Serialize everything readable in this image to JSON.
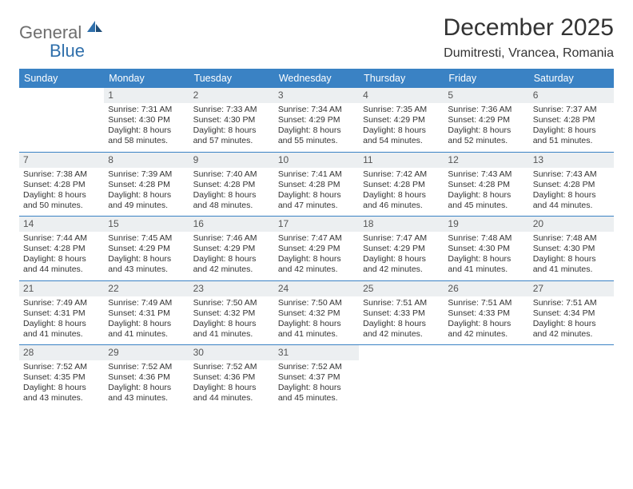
{
  "logo": {
    "word1": "General",
    "word2": "Blue"
  },
  "title": "December 2025",
  "location": "Dumitresti, Vrancea, Romania",
  "colors": {
    "header_bg": "#3a82c4",
    "header_text": "#ffffff",
    "daynum_bg": "#eceff1",
    "rule": "#3a82c4",
    "body_text": "#333333",
    "logo_gray": "#6e6e6e",
    "logo_blue": "#2f6fab",
    "page_bg": "#ffffff"
  },
  "typography": {
    "title_fontsize": 30,
    "location_fontsize": 16,
    "weekday_fontsize": 12.5,
    "daynum_fontsize": 12,
    "body_fontsize": 10.5,
    "logo_fontsize": 22
  },
  "weekdays": [
    "Sunday",
    "Monday",
    "Tuesday",
    "Wednesday",
    "Thursday",
    "Friday",
    "Saturday"
  ],
  "weeks": [
    [
      {
        "n": "",
        "sr": "",
        "ss": "",
        "dl": ""
      },
      {
        "n": "1",
        "sr": "Sunrise: 7:31 AM",
        "ss": "Sunset: 4:30 PM",
        "dl": "Daylight: 8 hours and 58 minutes."
      },
      {
        "n": "2",
        "sr": "Sunrise: 7:33 AM",
        "ss": "Sunset: 4:30 PM",
        "dl": "Daylight: 8 hours and 57 minutes."
      },
      {
        "n": "3",
        "sr": "Sunrise: 7:34 AM",
        "ss": "Sunset: 4:29 PM",
        "dl": "Daylight: 8 hours and 55 minutes."
      },
      {
        "n": "4",
        "sr": "Sunrise: 7:35 AM",
        "ss": "Sunset: 4:29 PM",
        "dl": "Daylight: 8 hours and 54 minutes."
      },
      {
        "n": "5",
        "sr": "Sunrise: 7:36 AM",
        "ss": "Sunset: 4:29 PM",
        "dl": "Daylight: 8 hours and 52 minutes."
      },
      {
        "n": "6",
        "sr": "Sunrise: 7:37 AM",
        "ss": "Sunset: 4:28 PM",
        "dl": "Daylight: 8 hours and 51 minutes."
      }
    ],
    [
      {
        "n": "7",
        "sr": "Sunrise: 7:38 AM",
        "ss": "Sunset: 4:28 PM",
        "dl": "Daylight: 8 hours and 50 minutes."
      },
      {
        "n": "8",
        "sr": "Sunrise: 7:39 AM",
        "ss": "Sunset: 4:28 PM",
        "dl": "Daylight: 8 hours and 49 minutes."
      },
      {
        "n": "9",
        "sr": "Sunrise: 7:40 AM",
        "ss": "Sunset: 4:28 PM",
        "dl": "Daylight: 8 hours and 48 minutes."
      },
      {
        "n": "10",
        "sr": "Sunrise: 7:41 AM",
        "ss": "Sunset: 4:28 PM",
        "dl": "Daylight: 8 hours and 47 minutes."
      },
      {
        "n": "11",
        "sr": "Sunrise: 7:42 AM",
        "ss": "Sunset: 4:28 PM",
        "dl": "Daylight: 8 hours and 46 minutes."
      },
      {
        "n": "12",
        "sr": "Sunrise: 7:43 AM",
        "ss": "Sunset: 4:28 PM",
        "dl": "Daylight: 8 hours and 45 minutes."
      },
      {
        "n": "13",
        "sr": "Sunrise: 7:43 AM",
        "ss": "Sunset: 4:28 PM",
        "dl": "Daylight: 8 hours and 44 minutes."
      }
    ],
    [
      {
        "n": "14",
        "sr": "Sunrise: 7:44 AM",
        "ss": "Sunset: 4:28 PM",
        "dl": "Daylight: 8 hours and 44 minutes."
      },
      {
        "n": "15",
        "sr": "Sunrise: 7:45 AM",
        "ss": "Sunset: 4:29 PM",
        "dl": "Daylight: 8 hours and 43 minutes."
      },
      {
        "n": "16",
        "sr": "Sunrise: 7:46 AM",
        "ss": "Sunset: 4:29 PM",
        "dl": "Daylight: 8 hours and 42 minutes."
      },
      {
        "n": "17",
        "sr": "Sunrise: 7:47 AM",
        "ss": "Sunset: 4:29 PM",
        "dl": "Daylight: 8 hours and 42 minutes."
      },
      {
        "n": "18",
        "sr": "Sunrise: 7:47 AM",
        "ss": "Sunset: 4:29 PM",
        "dl": "Daylight: 8 hours and 42 minutes."
      },
      {
        "n": "19",
        "sr": "Sunrise: 7:48 AM",
        "ss": "Sunset: 4:30 PM",
        "dl": "Daylight: 8 hours and 41 minutes."
      },
      {
        "n": "20",
        "sr": "Sunrise: 7:48 AM",
        "ss": "Sunset: 4:30 PM",
        "dl": "Daylight: 8 hours and 41 minutes."
      }
    ],
    [
      {
        "n": "21",
        "sr": "Sunrise: 7:49 AM",
        "ss": "Sunset: 4:31 PM",
        "dl": "Daylight: 8 hours and 41 minutes."
      },
      {
        "n": "22",
        "sr": "Sunrise: 7:49 AM",
        "ss": "Sunset: 4:31 PM",
        "dl": "Daylight: 8 hours and 41 minutes."
      },
      {
        "n": "23",
        "sr": "Sunrise: 7:50 AM",
        "ss": "Sunset: 4:32 PM",
        "dl": "Daylight: 8 hours and 41 minutes."
      },
      {
        "n": "24",
        "sr": "Sunrise: 7:50 AM",
        "ss": "Sunset: 4:32 PM",
        "dl": "Daylight: 8 hours and 41 minutes."
      },
      {
        "n": "25",
        "sr": "Sunrise: 7:51 AM",
        "ss": "Sunset: 4:33 PM",
        "dl": "Daylight: 8 hours and 42 minutes."
      },
      {
        "n": "26",
        "sr": "Sunrise: 7:51 AM",
        "ss": "Sunset: 4:33 PM",
        "dl": "Daylight: 8 hours and 42 minutes."
      },
      {
        "n": "27",
        "sr": "Sunrise: 7:51 AM",
        "ss": "Sunset: 4:34 PM",
        "dl": "Daylight: 8 hours and 42 minutes."
      }
    ],
    [
      {
        "n": "28",
        "sr": "Sunrise: 7:52 AM",
        "ss": "Sunset: 4:35 PM",
        "dl": "Daylight: 8 hours and 43 minutes."
      },
      {
        "n": "29",
        "sr": "Sunrise: 7:52 AM",
        "ss": "Sunset: 4:36 PM",
        "dl": "Daylight: 8 hours and 43 minutes."
      },
      {
        "n": "30",
        "sr": "Sunrise: 7:52 AM",
        "ss": "Sunset: 4:36 PM",
        "dl": "Daylight: 8 hours and 44 minutes."
      },
      {
        "n": "31",
        "sr": "Sunrise: 7:52 AM",
        "ss": "Sunset: 4:37 PM",
        "dl": "Daylight: 8 hours and 45 minutes."
      },
      {
        "n": "",
        "sr": "",
        "ss": "",
        "dl": ""
      },
      {
        "n": "",
        "sr": "",
        "ss": "",
        "dl": ""
      },
      {
        "n": "",
        "sr": "",
        "ss": "",
        "dl": ""
      }
    ]
  ]
}
